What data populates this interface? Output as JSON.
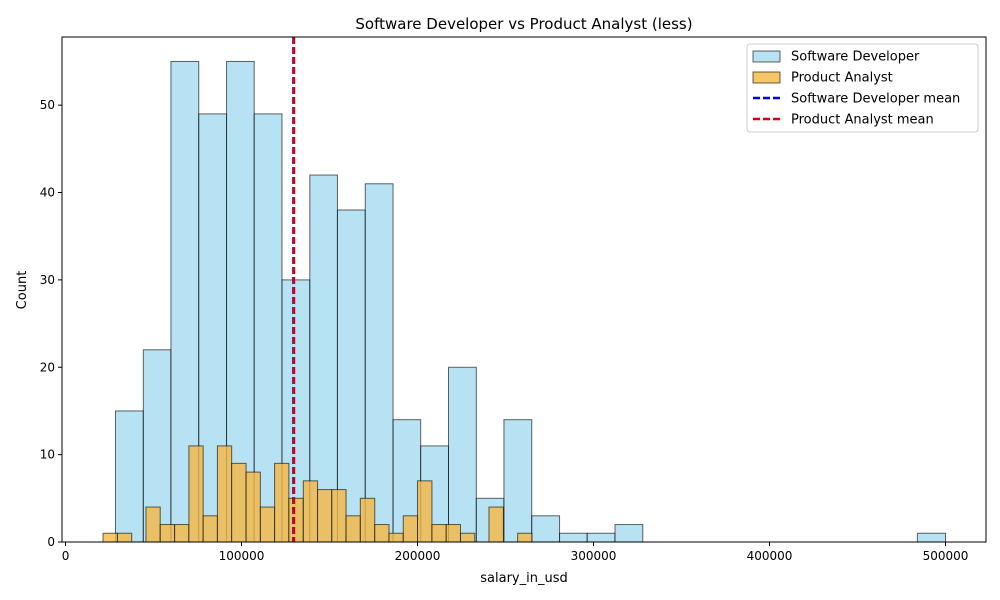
{
  "chart_data": {
    "type": "bar",
    "title": "Software Developer vs Product Analyst (less)",
    "xlabel": "salary_in_usd",
    "ylabel": "Count",
    "xlim": [
      -2000,
      523000
    ],
    "ylim": [
      0,
      57.8
    ],
    "xticks": [
      0,
      100000,
      200000,
      300000,
      400000,
      500000
    ],
    "yticks": [
      0,
      10,
      20,
      30,
      40,
      50
    ],
    "grid": false,
    "legend_position": "top-right",
    "series": [
      {
        "name": "Software Developer",
        "color": "#87ceeb",
        "bins": [
          {
            "x0": 28400,
            "x1": 44200,
            "count": 15
          },
          {
            "x0": 44200,
            "x1": 59900,
            "count": 22
          },
          {
            "x0": 59900,
            "x1": 75700,
            "count": 55
          },
          {
            "x0": 75700,
            "x1": 91500,
            "count": 49
          },
          {
            "x0": 91500,
            "x1": 107200,
            "count": 55
          },
          {
            "x0": 107200,
            "x1": 123000,
            "count": 49
          },
          {
            "x0": 123000,
            "x1": 138800,
            "count": 30
          },
          {
            "x0": 138800,
            "x1": 154500,
            "count": 42
          },
          {
            "x0": 154500,
            "x1": 170300,
            "count": 38
          },
          {
            "x0": 170300,
            "x1": 186100,
            "count": 41
          },
          {
            "x0": 186100,
            "x1": 201800,
            "count": 14
          },
          {
            "x0": 201800,
            "x1": 217600,
            "count": 11
          },
          {
            "x0": 217600,
            "x1": 233400,
            "count": 20
          },
          {
            "x0": 233400,
            "x1": 249100,
            "count": 5
          },
          {
            "x0": 249100,
            "x1": 264900,
            "count": 14
          },
          {
            "x0": 264900,
            "x1": 280700,
            "count": 3
          },
          {
            "x0": 280700,
            "x1": 296400,
            "count": 1
          },
          {
            "x0": 296400,
            "x1": 312200,
            "count": 1
          },
          {
            "x0": 312200,
            "x1": 328000,
            "count": 2
          },
          {
            "x0": 484000,
            "x1": 500000,
            "count": 1
          }
        ]
      },
      {
        "name": "Product Analyst",
        "color": "#f5b841",
        "bins": [
          {
            "x0": 21300,
            "x1": 29500,
            "count": 1
          },
          {
            "x0": 29500,
            "x1": 37600,
            "count": 1
          },
          {
            "x0": 45700,
            "x1": 53800,
            "count": 4
          },
          {
            "x0": 53800,
            "x1": 62000,
            "count": 2
          },
          {
            "x0": 62000,
            "x1": 70100,
            "count": 2
          },
          {
            "x0": 70100,
            "x1": 78200,
            "count": 11
          },
          {
            "x0": 78200,
            "x1": 86300,
            "count": 3
          },
          {
            "x0": 86300,
            "x1": 94400,
            "count": 11
          },
          {
            "x0": 94400,
            "x1": 102600,
            "count": 9
          },
          {
            "x0": 102600,
            "x1": 110700,
            "count": 8
          },
          {
            "x0": 110700,
            "x1": 118800,
            "count": 4
          },
          {
            "x0": 118800,
            "x1": 126900,
            "count": 9
          },
          {
            "x0": 126900,
            "x1": 135100,
            "count": 5
          },
          {
            "x0": 135100,
            "x1": 143200,
            "count": 7
          },
          {
            "x0": 143200,
            "x1": 151300,
            "count": 6
          },
          {
            "x0": 151300,
            "x1": 159400,
            "count": 6
          },
          {
            "x0": 159400,
            "x1": 167500,
            "count": 3
          },
          {
            "x0": 167500,
            "x1": 175700,
            "count": 5
          },
          {
            "x0": 175700,
            "x1": 183800,
            "count": 2
          },
          {
            "x0": 183800,
            "x1": 191900,
            "count": 1
          },
          {
            "x0": 191900,
            "x1": 200000,
            "count": 3
          },
          {
            "x0": 200000,
            "x1": 208200,
            "count": 7
          },
          {
            "x0": 208200,
            "x1": 216300,
            "count": 2
          },
          {
            "x0": 216300,
            "x1": 224400,
            "count": 2
          },
          {
            "x0": 224400,
            "x1": 232500,
            "count": 1
          },
          {
            "x0": 240600,
            "x1": 248800,
            "count": 4
          },
          {
            "x0": 256900,
            "x1": 265000,
            "count": 1
          }
        ]
      }
    ],
    "mean_lines": [
      {
        "name": "Software Developer mean",
        "x": 129500,
        "color": "#0000ee"
      },
      {
        "name": "Product Analyst mean",
        "x": 129800,
        "color": "#dd0000"
      }
    ],
    "legend": [
      {
        "label": "Software Developer",
        "kind": "patch",
        "color": "#87ceeb"
      },
      {
        "label": "Product Analyst",
        "kind": "patch",
        "color": "#f5b841"
      },
      {
        "label": "Software Developer mean",
        "kind": "line",
        "color": "#0000ee"
      },
      {
        "label": "Product Analyst mean",
        "kind": "line",
        "color": "#dd0000"
      }
    ]
  }
}
